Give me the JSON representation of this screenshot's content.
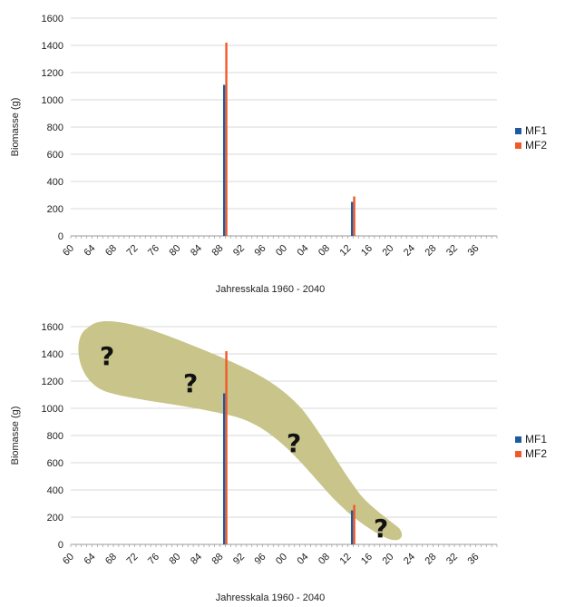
{
  "chart_data": [
    {
      "type": "bar",
      "xlabel": "Jahresskala 1960 - 2040",
      "ylabel": "Biomasse (g)",
      "ylim": [
        0,
        1600
      ],
      "yticks": [
        0,
        200,
        400,
        600,
        800,
        1000,
        1200,
        1400,
        1600
      ],
      "xlim": [
        1960,
        2040
      ],
      "xtick_labels": [
        "60",
        "64",
        "68",
        "72",
        "76",
        "80",
        "84",
        "88",
        "92",
        "96",
        "00",
        "04",
        "08",
        "12",
        "16",
        "20",
        "24",
        "28",
        "32",
        "36"
      ],
      "grid": "horizontal",
      "legend": "right",
      "series": [
        {
          "name": "MF1",
          "color": "#1f5aa0",
          "points": [
            {
              "x": 1989,
              "y": 1110
            },
            {
              "x": 2013,
              "y": 250
            }
          ]
        },
        {
          "name": "MF2",
          "color": "#f05a28",
          "points": [
            {
              "x": 1989,
              "y": 1420
            },
            {
              "x": 2013,
              "y": 290
            }
          ]
        }
      ]
    },
    {
      "type": "bar",
      "xlabel": "Jahresskala 1960 - 2040",
      "ylabel": "Biomasse (g)",
      "ylim": [
        0,
        1600
      ],
      "yticks": [
        0,
        200,
        400,
        600,
        800,
        1000,
        1200,
        1400,
        1600
      ],
      "xlim": [
        1960,
        2040
      ],
      "xtick_labels": [
        "60",
        "64",
        "68",
        "72",
        "76",
        "80",
        "84",
        "88",
        "92",
        "96",
        "00",
        "04",
        "08",
        "12",
        "16",
        "20",
        "24",
        "28",
        "32",
        "36"
      ],
      "grid": "horizontal",
      "legend": "right",
      "series": [
        {
          "name": "MF1",
          "color": "#1f5aa0",
          "points": [
            {
              "x": 1989,
              "y": 1110
            },
            {
              "x": 2013,
              "y": 250
            }
          ]
        },
        {
          "name": "MF2",
          "color": "#f05a28",
          "points": [
            {
              "x": 1989,
              "y": 1420
            },
            {
              "x": 2013,
              "y": 290
            }
          ]
        }
      ],
      "annotation": {
        "shape": "uncertainty-band",
        "fill": "#c8c48a",
        "marks": [
          "?",
          "?",
          "?",
          "?"
        ]
      }
    }
  ]
}
